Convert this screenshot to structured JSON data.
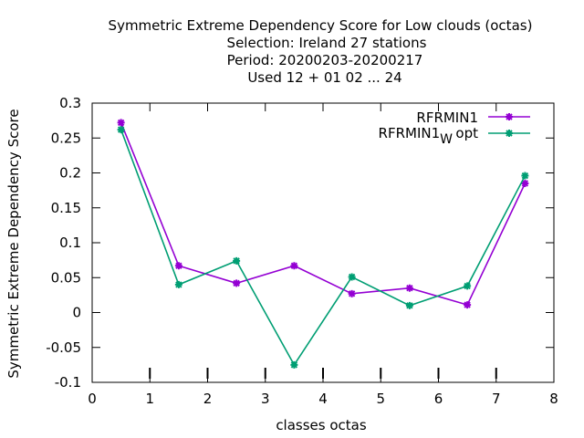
{
  "chart_data": {
    "type": "line",
    "title_lines": [
      "Symmetric Extreme Dependency Score  for Low clouds (octas)",
      "Selection: Ireland     27 stations",
      "Period: 20200203-20200217",
      "Used  12 + 01 02 ... 24"
    ],
    "xlabel": "classes octas",
    "ylabel": "Symmetric Extreme Dependency Score",
    "xlim": [
      0,
      8
    ],
    "ylim": [
      -0.1,
      0.3
    ],
    "xticks": [
      "0",
      "1",
      "2",
      "3",
      "4",
      "5",
      "6",
      "7",
      "8"
    ],
    "yticks": [
      "0.3",
      "0.25",
      "0.2",
      "0.15",
      "0.1",
      "0.05",
      "0",
      "-0.05",
      "-0.1"
    ],
    "grid": false,
    "legend_position": "top-right",
    "x": [
      0.5,
      1.5,
      2.5,
      3.5,
      4.5,
      5.5,
      6.5,
      7.5
    ],
    "series": [
      {
        "name": "RFRMIN1",
        "color": "#9400d3",
        "values": [
          0.272,
          0.067,
          0.042,
          0.067,
          0.027,
          0.035,
          0.011,
          0.185
        ]
      },
      {
        "name": "RFRMIN1",
        "name_subscript": "W",
        "name_suffix": " opt",
        "color": "#009e73",
        "values": [
          0.262,
          0.04,
          0.074,
          -0.075,
          0.051,
          0.01,
          0.038,
          0.196
        ]
      }
    ]
  }
}
